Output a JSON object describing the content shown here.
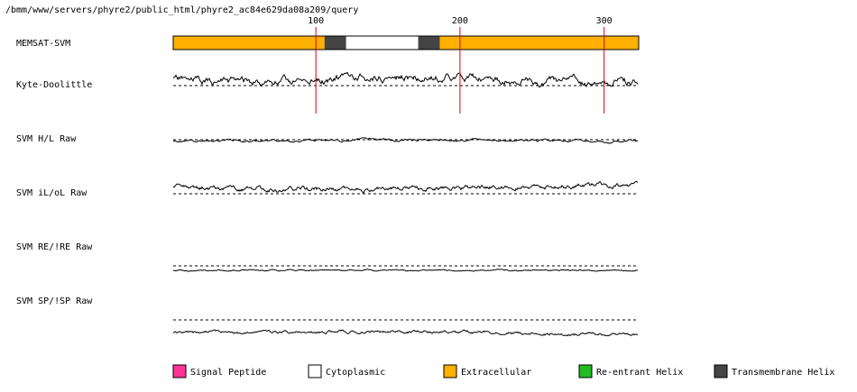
{
  "header": {
    "path": "/bmm/www/servers/phyre2/public_html/phyre2_ac84e629da08a209/query"
  },
  "chart_data": {
    "type": "line",
    "x_axis": {
      "min": 1,
      "max": 324,
      "ticks": [
        100,
        200,
        300
      ]
    },
    "memsat": {
      "label": "MEMSAT-SVM",
      "segments": [
        {
          "start": 1,
          "end": 105,
          "type": "extracellular"
        },
        {
          "start": 106,
          "end": 120,
          "type": "transmembrane"
        },
        {
          "start": 121,
          "end": 170,
          "type": "cytoplasmic"
        },
        {
          "start": 171,
          "end": 185,
          "type": "transmembrane"
        },
        {
          "start": 186,
          "end": 324,
          "type": "extracellular"
        }
      ]
    },
    "tracks": [
      {
        "label": "Kyte-Doolittle",
        "key": "kd"
      },
      {
        "label": "SVM H/L Raw",
        "key": "hl"
      },
      {
        "label": "SVM iL/oL Raw",
        "key": "ilol"
      },
      {
        "label": "SVM RE/!RE Raw",
        "key": "re"
      },
      {
        "label": "SVM SP/!SP Raw",
        "key": "sp"
      }
    ],
    "legend": {
      "placement": "bottom",
      "items": [
        {
          "label": "Signal Peptide",
          "color": "#ff3399"
        },
        {
          "label": "Cytoplasmic",
          "color": "#ffffff"
        },
        {
          "label": "Extracellular",
          "color": "#ffb000"
        },
        {
          "label": "Re-entrant Helix",
          "color": "#22bb22"
        },
        {
          "label": "Transmembrane Helix",
          "color": "#444444"
        }
      ]
    },
    "colors": {
      "extracellular": "#ffb000",
      "cytoplasmic": "#ffffff",
      "transmembrane": "#444444",
      "tick_line": "#dd0000"
    }
  }
}
